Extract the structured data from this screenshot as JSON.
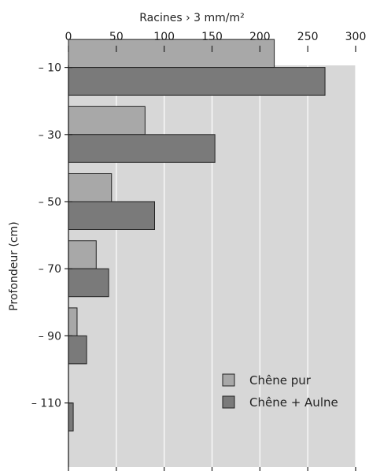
{
  "chart_data": {
    "type": "bar",
    "orientation": "horizontal",
    "title": "",
    "xlabel": "Racines › 3 mm/m²",
    "ylabel": "Profondeur (cm)",
    "xlim": [
      0,
      300
    ],
    "x_ticks": [
      0,
      50,
      100,
      150,
      200,
      250,
      300
    ],
    "x_tick_labels": [
      "0",
      "50",
      "100",
      "150",
      "200",
      "250",
      "300"
    ],
    "x_axis_position": "top",
    "ylim": [
      120,
      0
    ],
    "y_ticks": [
      10,
      30,
      50,
      70,
      90,
      110
    ],
    "y_tick_labels": [
      "– 10",
      "– 30",
      "– 50",
      "– 70",
      "– 90",
      "– 110"
    ],
    "categories": [
      10,
      30,
      50,
      70,
      90,
      110
    ],
    "series": [
      {
        "name": "Chêne pur",
        "color": "#a8a8a8",
        "values": [
          215,
          80,
          45,
          29,
          9,
          0
        ]
      },
      {
        "name": "Chêne + Aulne",
        "color": "#7a7a7a",
        "values": [
          268,
          153,
          90,
          42,
          19,
          5
        ]
      }
    ],
    "plot_background": "#d7d7d7",
    "grid": true,
    "legend": {
      "position": "bottom-right",
      "labels": [
        "Chêne pur",
        "Chêne + Aulne"
      ]
    }
  }
}
